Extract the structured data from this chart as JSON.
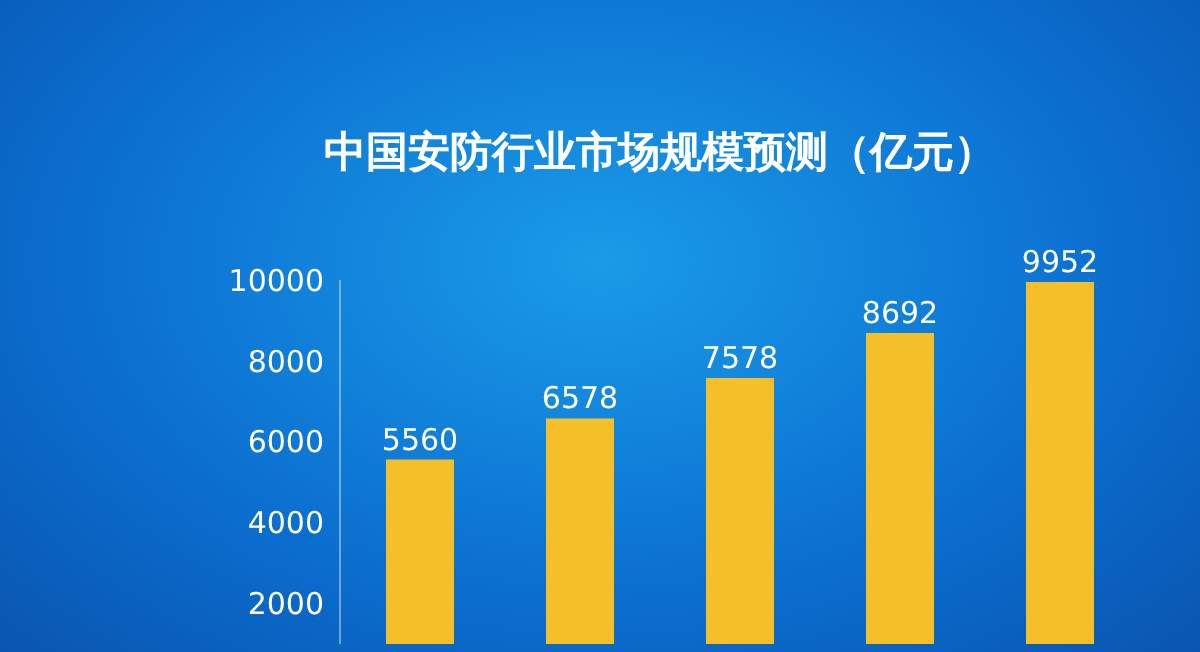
{
  "chart_data": {
    "type": "bar",
    "title": "中国安防行业市场规模预测（亿元）",
    "categories": [
      null,
      null,
      null,
      null,
      null
    ],
    "values": [
      5560,
      6578,
      7578,
      8692,
      9952
    ],
    "color": "#f5bf2a",
    "ylim": [
      1000,
      10000
    ],
    "yticks": [
      2000,
      4000,
      6000,
      8000,
      10000
    ],
    "data_labels": true,
    "tick_labels": "y",
    "grid": false,
    "legend": false
  }
}
